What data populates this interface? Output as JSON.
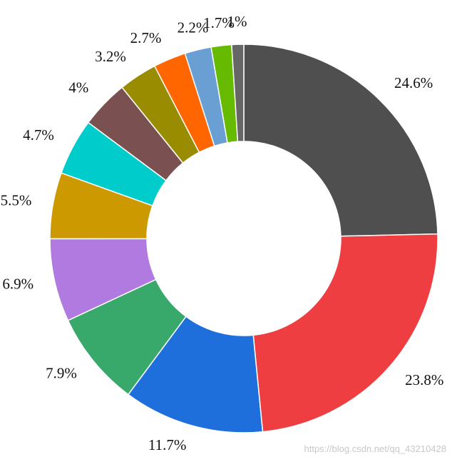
{
  "chart_data": {
    "type": "pie",
    "variant": "donut",
    "values": [
      24.6,
      23.8,
      11.7,
      7.9,
      6.9,
      5.5,
      4.7,
      4,
      3.2,
      2.7,
      2.2,
      1.7,
      1
    ],
    "labels": [
      "24.6%",
      "23.8%",
      "11.7%",
      "7.9%",
      "6.9%",
      "5.5%",
      "4.7%",
      "4%",
      "3.2%",
      "2.7%",
      "2.2%",
      "1.7%",
      "1%"
    ],
    "colors": [
      "#4f4f4f",
      "#ee3e41",
      "#1e6fdc",
      "#39a96b",
      "#b07ae0",
      "#cc9a00",
      "#00cccc",
      "#7a5150",
      "#9a8c00",
      "#ff6600",
      "#6a9fd4",
      "#66bb00",
      "#666666"
    ],
    "start_direction": "top",
    "direction": "clockwise",
    "legend": "none"
  },
  "watermark": "https://blog.csdn.net/qq_43210428"
}
